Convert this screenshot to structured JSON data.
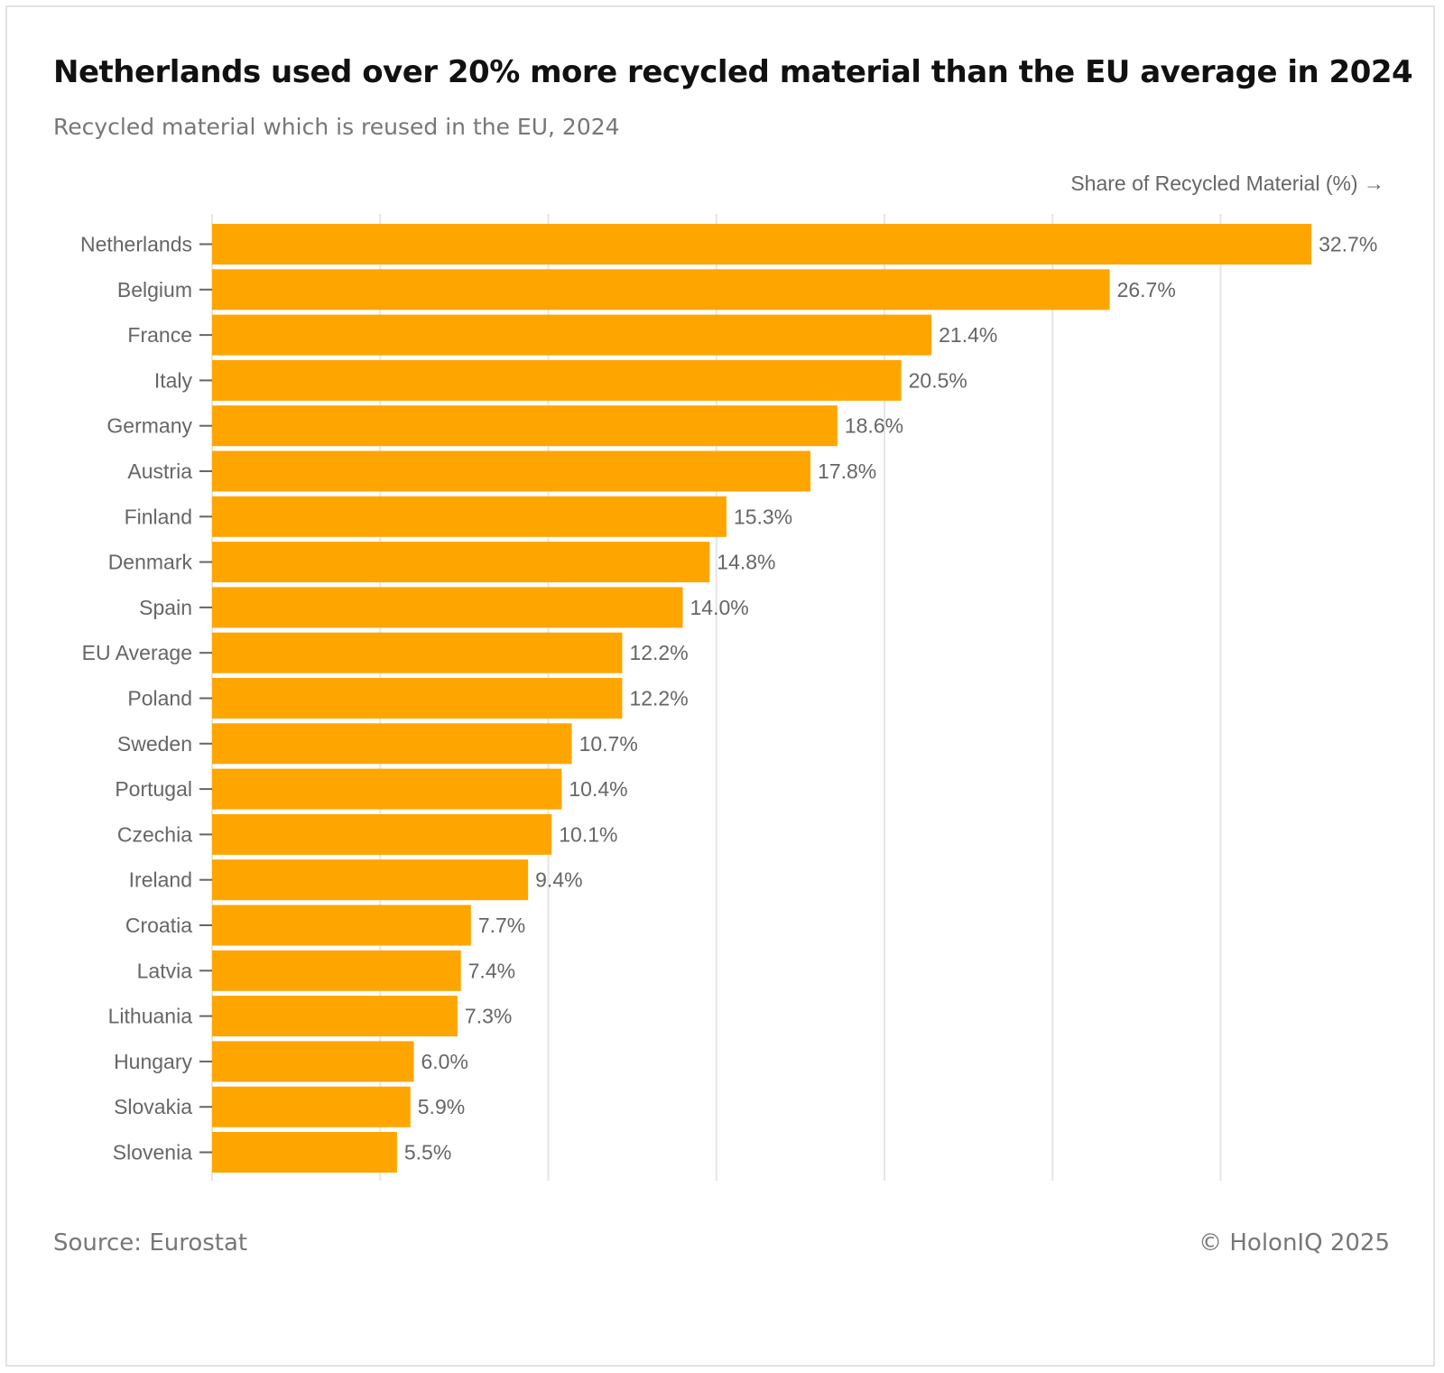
{
  "chart_data": {
    "type": "bar",
    "orientation": "horizontal",
    "title": "Netherlands used over 20% more recycled material than the EU average in 2024",
    "subtitle": "Recycled material which is reused in the EU, 2024",
    "xlabel": "Share of Recycled Material (%) →",
    "ylabel": "",
    "xlim": [
      0,
      35
    ],
    "gridlines": [
      0,
      5,
      10,
      15,
      20,
      25,
      30
    ],
    "grid": true,
    "bar_color": "#FFA500",
    "categories": [
      "Netherlands",
      "Belgium",
      "France",
      "Italy",
      "Germany",
      "Austria",
      "Finland",
      "Denmark",
      "Spain",
      "EU Average",
      "Poland",
      "Sweden",
      "Portugal",
      "Czechia",
      "Ireland",
      "Croatia",
      "Latvia",
      "Lithuania",
      "Hungary",
      "Slovakia",
      "Slovenia"
    ],
    "values": [
      32.7,
      26.7,
      21.4,
      20.5,
      18.6,
      17.8,
      15.3,
      14.8,
      14.0,
      12.2,
      12.2,
      10.7,
      10.4,
      10.1,
      9.4,
      7.7,
      7.4,
      7.3,
      6.0,
      5.9,
      5.5
    ],
    "labels": [
      "32.7%",
      "26.7%",
      "21.4%",
      "20.5%",
      "18.6%",
      "17.8%",
      "15.3%",
      "14.8%",
      "14.0%",
      "12.2%",
      "12.2%",
      "10.7%",
      "10.4%",
      "10.1%",
      "9.4%",
      "7.7%",
      "7.4%",
      "7.3%",
      "6.0%",
      "5.9%",
      "5.5%"
    ]
  },
  "footer": {
    "source": "Source: Eurostat",
    "copyright": "© HolonIQ 2025"
  }
}
